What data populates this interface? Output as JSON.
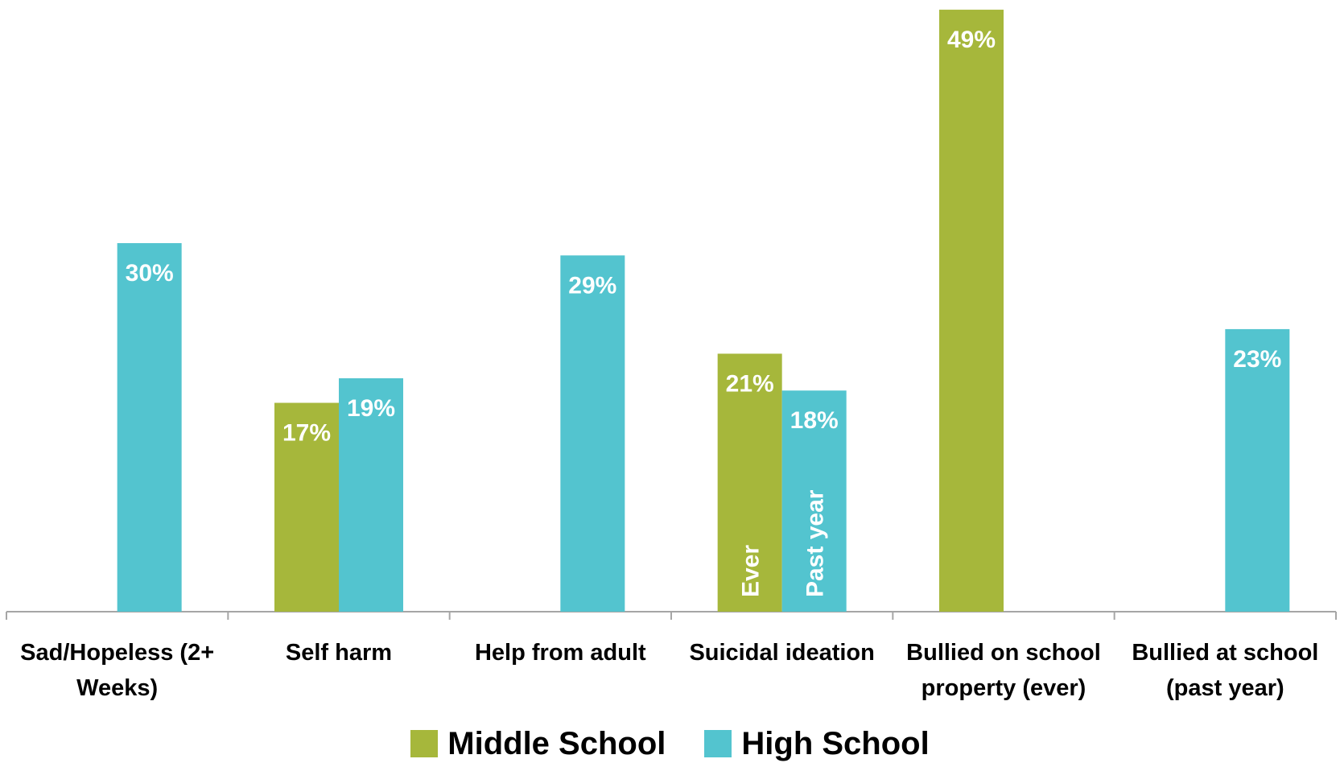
{
  "chart_data": {
    "type": "bar",
    "categories": [
      [
        "Sad/Hopeless (2+",
        "Weeks)"
      ],
      [
        "Self harm"
      ],
      [
        "Help from adult"
      ],
      [
        "Suicidal ideation"
      ],
      [
        "Bullied on school",
        "property (ever)"
      ],
      [
        "Bullied at school",
        "(past year)"
      ]
    ],
    "series": [
      {
        "name": "Middle School",
        "color": "#a6b73b",
        "values": [
          null,
          17,
          null,
          21,
          49,
          null
        ],
        "labels": [
          null,
          "17%",
          null,
          "21%",
          "49%",
          null
        ]
      },
      {
        "name": "High School",
        "color": "#53c4cf",
        "values": [
          30,
          19,
          29,
          18,
          null,
          23
        ],
        "labels": [
          "30%",
          "19%",
          "29%",
          "18%",
          null,
          "23%"
        ]
      }
    ],
    "annotations": [
      {
        "category_index": 3,
        "series_index": 0,
        "text": "Ever"
      },
      {
        "category_index": 3,
        "series_index": 1,
        "text": "Past year"
      }
    ],
    "ylim": [
      0,
      50
    ],
    "grid": false,
    "legend_position": "bottom"
  }
}
